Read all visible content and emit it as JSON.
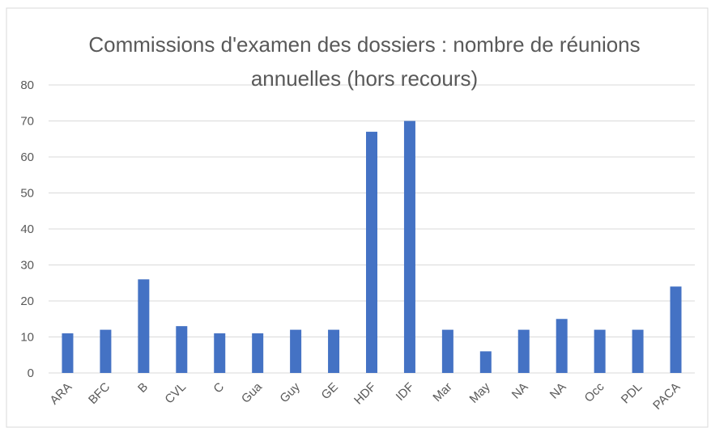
{
  "chart_data": {
    "type": "bar",
    "title": "Commissions d'examen des dossiers : nombre de réunions annuelles (hors recours)",
    "categories": [
      "ARA",
      "BFC",
      "B",
      "CVL",
      "C",
      "Gua",
      "Guy",
      "GE",
      "HDF",
      "IDF",
      "Mar",
      "May",
      "NA",
      "NA",
      "Occ",
      "PDL",
      "PACA"
    ],
    "values": [
      11,
      12,
      26,
      13,
      11,
      11,
      12,
      12,
      67,
      70,
      12,
      6,
      12,
      15,
      12,
      12,
      24
    ],
    "color": "#4472c4",
    "ylim": [
      0,
      80
    ],
    "yticks": [
      0,
      10,
      20,
      30,
      40,
      50,
      60,
      70,
      80
    ],
    "grid": true
  }
}
